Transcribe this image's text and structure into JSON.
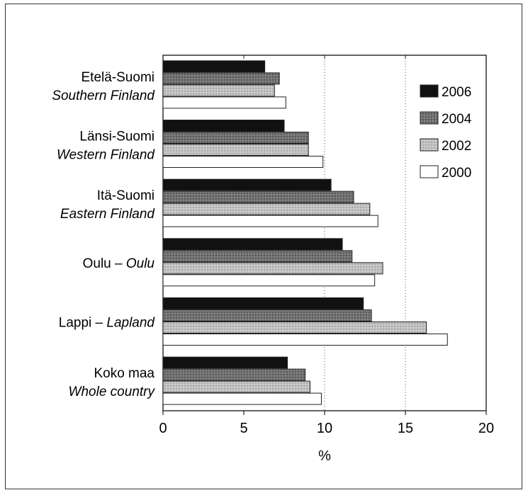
{
  "chart_data": {
    "type": "bar",
    "orientation": "horizontal",
    "categories": [
      {
        "main": "Etelä-Suomi",
        "sub": "Southern Finland"
      },
      {
        "main": "Länsi-Suomi",
        "sub": "Western Finland"
      },
      {
        "main": "Itä-Suomi",
        "sub": "Eastern Finland"
      },
      {
        "main": "Oulu – ",
        "sub": "Oulu",
        "inline": true
      },
      {
        "main": "Lappi – ",
        "sub": "Lapland",
        "inline": true
      },
      {
        "main": "Koko maa",
        "sub": "Whole country"
      }
    ],
    "series": [
      {
        "name": "2006",
        "color": "#111111",
        "values": [
          6.3,
          7.5,
          10.4,
          11.1,
          12.4,
          7.7
        ]
      },
      {
        "name": "2004",
        "color": "#6f6f6f",
        "values": [
          7.2,
          9.0,
          11.8,
          11.7,
          12.9,
          8.8
        ]
      },
      {
        "name": "2002",
        "color": "#bdbdbd",
        "values": [
          6.9,
          9.0,
          12.8,
          13.6,
          16.3,
          9.1
        ]
      },
      {
        "name": "2000",
        "color": "#ffffff",
        "values": [
          7.6,
          9.9,
          13.3,
          13.1,
          17.6,
          9.8
        ]
      }
    ],
    "xlabel": "%",
    "xlim": [
      0,
      20
    ],
    "xticks": [
      0,
      5,
      10,
      15,
      20
    ],
    "grid": "dotted vertical at 10 and 15",
    "legend_position": "top-right"
  }
}
